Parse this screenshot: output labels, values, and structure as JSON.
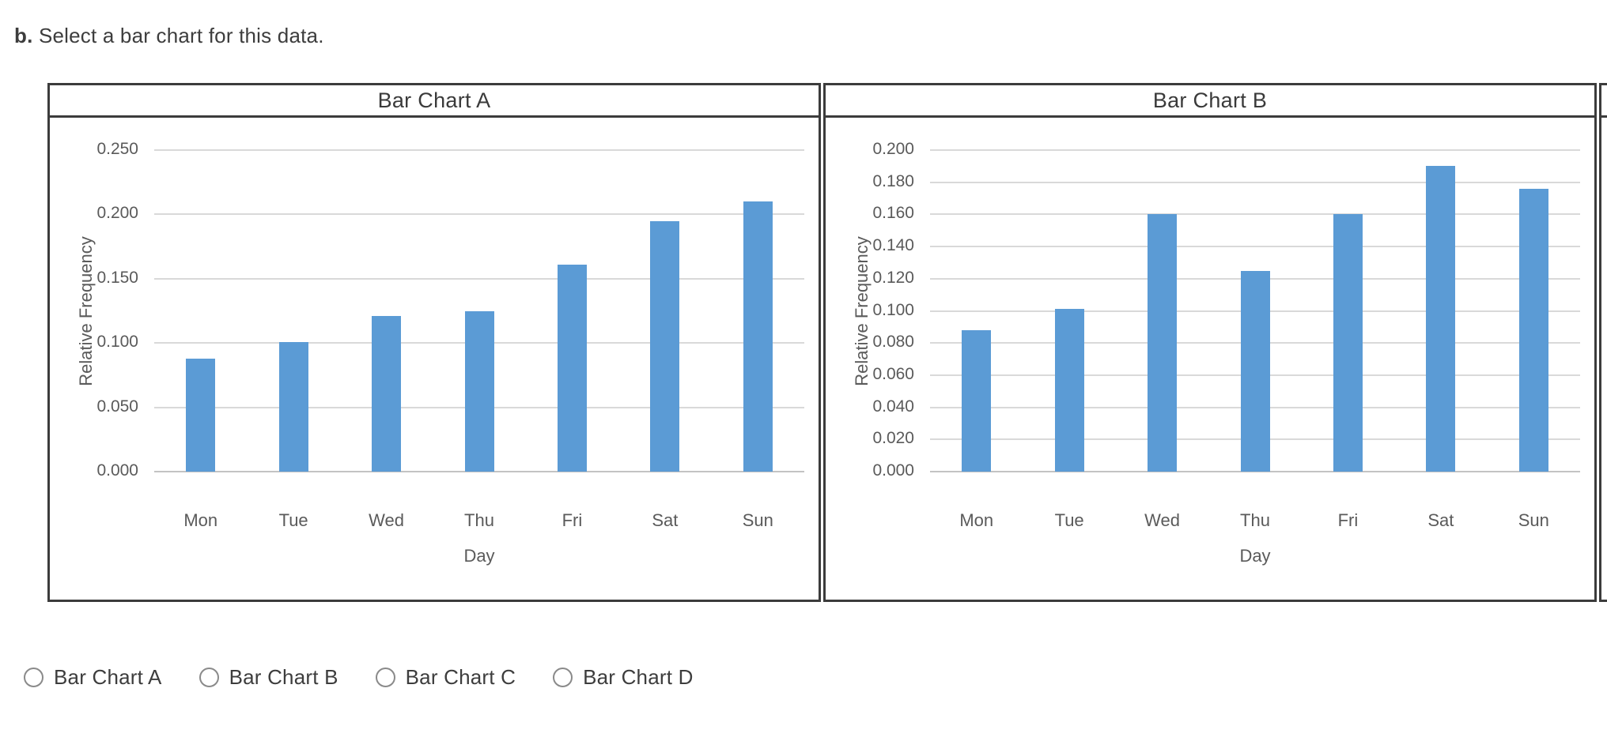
{
  "question": {
    "label": "b.",
    "text": " Select a bar chart for this data."
  },
  "chart_data": [
    {
      "type": "bar",
      "title": "Bar Chart A",
      "categories": [
        "Mon",
        "Tue",
        "Wed",
        "Thu",
        "Fri",
        "Sat",
        "Sun"
      ],
      "values": [
        0.088,
        0.101,
        0.121,
        0.125,
        0.161,
        0.195,
        0.21
      ],
      "xlabel": "Day",
      "ylabel": "Relative Frequency",
      "ylim": [
        0,
        0.25
      ],
      "yticks": [
        0.25,
        0.2,
        0.15,
        0.1,
        0.05,
        0.0
      ],
      "ytick_format_decimals": 3,
      "grid": true,
      "legend": false,
      "bar_color": "#5b9bd5"
    },
    {
      "type": "bar",
      "title": "Bar Chart B",
      "categories": [
        "Mon",
        "Tue",
        "Wed",
        "Thu",
        "Fri",
        "Sat",
        "Sun"
      ],
      "values": [
        0.088,
        0.101,
        0.16,
        0.125,
        0.16,
        0.19,
        0.176
      ],
      "xlabel": "Day",
      "ylabel": "Relative Frequency",
      "ylim": [
        0,
        0.2
      ],
      "yticks": [
        0.2,
        0.18,
        0.16,
        0.14,
        0.12,
        0.1,
        0.08,
        0.06,
        0.04,
        0.02,
        0.0
      ],
      "ytick_format_decimals": 3,
      "grid": true,
      "legend": false,
      "bar_color": "#5b9bd5"
    }
  ],
  "options": [
    "Bar Chart A",
    "Bar Chart B",
    "Bar Chart C",
    "Bar Chart D"
  ],
  "colors": {
    "bar": "#5b9bd5",
    "gridline": "#d9d9d9",
    "axis_line": "#c3c3c3",
    "panel_border": "#3c3c3c",
    "chart_text": "#5a5a5a",
    "body_text": "#3d3d3d"
  }
}
